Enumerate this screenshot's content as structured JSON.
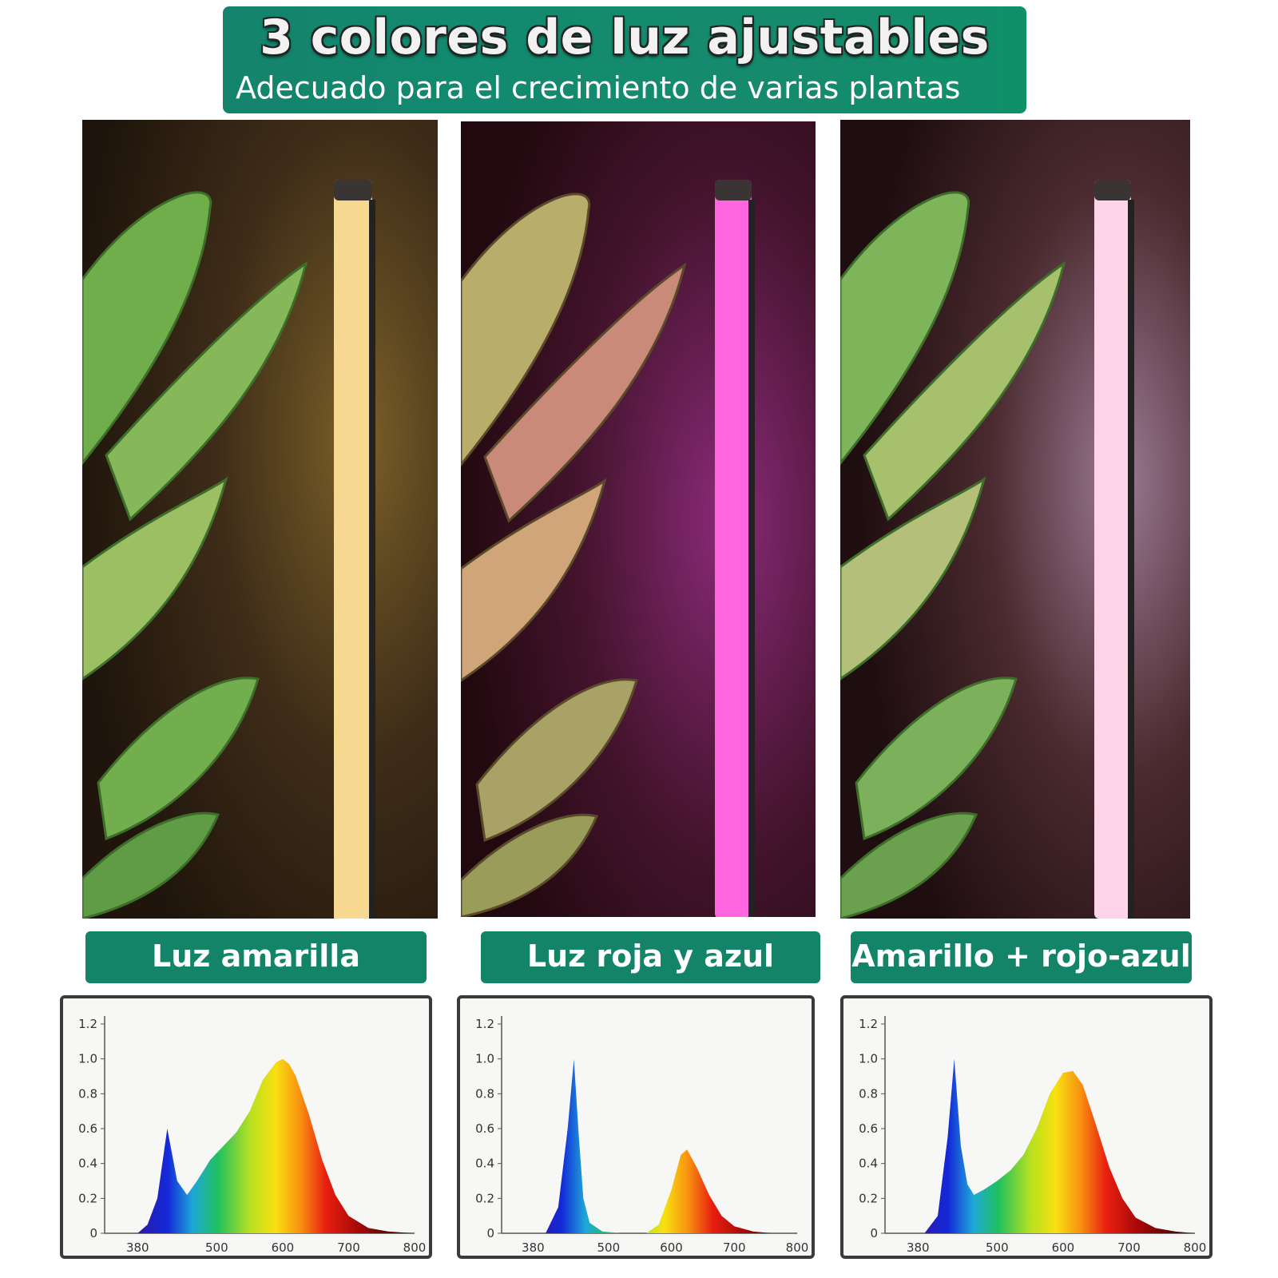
{
  "header": {
    "title": "3 colores de luz ajustables",
    "subtitle": "Adecuado para el crecimiento de varias plantas",
    "color": "#14836c"
  },
  "panels": [
    {
      "label": "Luz amarilla",
      "light_color": "#f6d890",
      "glow": "#6b5524",
      "bg": "#2a1c10",
      "leaf_tint": "#7fc35a"
    },
    {
      "label": "Luz roja y azul",
      "light_color": "#ff66e0",
      "glow": "#8a2a78",
      "bg": "#2a0e1c",
      "leaf_tint": "#b8ad6a"
    },
    {
      "label": "Amarillo + rojo-azul",
      "light_color": "#ffd4e8",
      "glow": "#9b7a94",
      "bg": "#261214",
      "leaf_tint": "#8fc36a"
    }
  ],
  "chart_data": [
    {
      "type": "area",
      "title": "",
      "xlabel": "",
      "ylabel": "",
      "xticks": [
        "380",
        "500",
        "600",
        "700",
        "800"
      ],
      "yticks": [
        "0",
        "0.2",
        "0.4",
        "0.6",
        "0.8",
        "1.0",
        "1.2"
      ],
      "xlim": [
        330,
        800
      ],
      "ylim": [
        0,
        1.2
      ],
      "x": [
        330,
        380,
        395,
        410,
        425,
        440,
        455,
        470,
        490,
        510,
        530,
        550,
        570,
        590,
        600,
        610,
        620,
        640,
        660,
        680,
        700,
        730,
        760,
        800
      ],
      "y": [
        0,
        0.0,
        0.05,
        0.2,
        0.6,
        0.3,
        0.22,
        0.3,
        0.42,
        0.5,
        0.58,
        0.7,
        0.88,
        0.98,
        1.0,
        0.97,
        0.9,
        0.68,
        0.42,
        0.22,
        0.1,
        0.03,
        0.01,
        0
      ]
    },
    {
      "type": "area",
      "title": "",
      "xlabel": "",
      "ylabel": "",
      "xticks": [
        "380",
        "500",
        "600",
        "700",
        "800"
      ],
      "yticks": [
        "0",
        "0.2",
        "0.4",
        "0.6",
        "0.8",
        "1.0",
        "1.2"
      ],
      "xlim": [
        330,
        800
      ],
      "ylim": [
        0,
        1.2
      ],
      "x": [
        330,
        400,
        420,
        435,
        445,
        452,
        460,
        470,
        490,
        520,
        560,
        580,
        600,
        615,
        625,
        640,
        660,
        680,
        700,
        730,
        760,
        800
      ],
      "y": [
        0,
        0.0,
        0.15,
        0.6,
        1.0,
        0.6,
        0.2,
        0.06,
        0.01,
        0.0,
        0.0,
        0.05,
        0.25,
        0.45,
        0.48,
        0.38,
        0.22,
        0.1,
        0.04,
        0.01,
        0.0,
        0
      ]
    },
    {
      "type": "area",
      "title": "",
      "xlabel": "",
      "ylabel": "",
      "xticks": [
        "380",
        "500",
        "600",
        "700",
        "800"
      ],
      "yticks": [
        "0",
        "0.2",
        "0.4",
        "0.6",
        "0.8",
        "1.0",
        "1.2"
      ],
      "xlim": [
        330,
        800
      ],
      "ylim": [
        0,
        1.2
      ],
      "x": [
        330,
        390,
        410,
        425,
        435,
        445,
        455,
        465,
        480,
        500,
        520,
        540,
        560,
        580,
        600,
        615,
        630,
        650,
        670,
        690,
        710,
        740,
        770,
        800
      ],
      "y": [
        0,
        0.0,
        0.1,
        0.55,
        1.0,
        0.5,
        0.28,
        0.22,
        0.25,
        0.3,
        0.36,
        0.45,
        0.6,
        0.8,
        0.92,
        0.93,
        0.85,
        0.62,
        0.38,
        0.2,
        0.09,
        0.03,
        0.01,
        0
      ]
    }
  ]
}
